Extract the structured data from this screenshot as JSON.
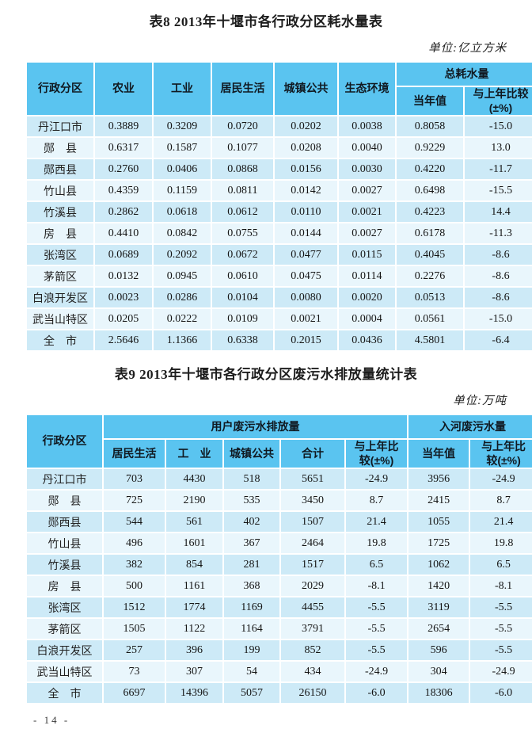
{
  "page": {
    "footer_page_number": "- 14 -"
  },
  "colors": {
    "header_bg": "#5ac4f0",
    "row_odd_bg": "#cdeaf7",
    "row_even_bg": "#e9f6fc"
  },
  "table8": {
    "title": "表8  2013年十堰市各行政分区耗水量表",
    "unit": "单位:亿立方米",
    "columns": {
      "district": "行政分区",
      "agriculture": "农业",
      "industry": "工业",
      "domestic": "居民生活",
      "urban_public": "城镇公共",
      "ecology": "生态环境",
      "total_group": "总耗水量",
      "current_value": "当年值",
      "yoy": "与上年比较\n(±%)"
    },
    "rows": [
      [
        "丹江口市",
        "0.3889",
        "0.3209",
        "0.0720",
        "0.0202",
        "0.0038",
        "0.8058",
        "-15.0"
      ],
      [
        "郧　县",
        "0.6317",
        "0.1587",
        "0.1077",
        "0.0208",
        "0.0040",
        "0.9229",
        "13.0"
      ],
      [
        "郧西县",
        "0.2760",
        "0.0406",
        "0.0868",
        "0.0156",
        "0.0030",
        "0.4220",
        "-11.7"
      ],
      [
        "竹山县",
        "0.4359",
        "0.1159",
        "0.0811",
        "0.0142",
        "0.0027",
        "0.6498",
        "-15.5"
      ],
      [
        "竹溪县",
        "0.2862",
        "0.0618",
        "0.0612",
        "0.0110",
        "0.0021",
        "0.4223",
        "14.4"
      ],
      [
        "房　县",
        "0.4410",
        "0.0842",
        "0.0755",
        "0.0144",
        "0.0027",
        "0.6178",
        "-11.3"
      ],
      [
        "张湾区",
        "0.0689",
        "0.2092",
        "0.0672",
        "0.0477",
        "0.0115",
        "0.4045",
        "-8.6"
      ],
      [
        "茅箭区",
        "0.0132",
        "0.0945",
        "0.0610",
        "0.0475",
        "0.0114",
        "0.2276",
        "-8.6"
      ],
      [
        "白浪开发区",
        "0.0023",
        "0.0286",
        "0.0104",
        "0.0080",
        "0.0020",
        "0.0513",
        "-8.6"
      ],
      [
        "武当山特区",
        "0.0205",
        "0.0222",
        "0.0109",
        "0.0021",
        "0.0004",
        "0.0561",
        "-15.0"
      ],
      [
        "全　市",
        "2.5646",
        "1.1366",
        "0.6338",
        "0.2015",
        "0.0436",
        "4.5801",
        "-6.4"
      ]
    ]
  },
  "table9": {
    "title": "表9  2013年十堰市各行政分区废污水排放量统计表",
    "unit": "单位:万吨",
    "columns": {
      "district": "行政分区",
      "user_group": "用户废污水排放量",
      "river_group": "入河废污水量",
      "domestic": "居民生活",
      "industry": "工　业",
      "urban_public": "城镇公共",
      "total": "合计",
      "user_yoy": "与上年比\n较(±%)",
      "current_value": "当年值",
      "river_yoy": "与上年比\n较(±%)"
    },
    "rows": [
      [
        "丹江口市",
        "703",
        "4430",
        "518",
        "5651",
        "-24.9",
        "3956",
        "-24.9"
      ],
      [
        "郧　县",
        "725",
        "2190",
        "535",
        "3450",
        "8.7",
        "2415",
        "8.7"
      ],
      [
        "郧西县",
        "544",
        "561",
        "402",
        "1507",
        "21.4",
        "1055",
        "21.4"
      ],
      [
        "竹山县",
        "496",
        "1601",
        "367",
        "2464",
        "19.8",
        "1725",
        "19.8"
      ],
      [
        "竹溪县",
        "382",
        "854",
        "281",
        "1517",
        "6.5",
        "1062",
        "6.5"
      ],
      [
        "房　县",
        "500",
        "1161",
        "368",
        "2029",
        "-8.1",
        "1420",
        "-8.1"
      ],
      [
        "张湾区",
        "1512",
        "1774",
        "1169",
        "4455",
        "-5.5",
        "3119",
        "-5.5"
      ],
      [
        "茅箭区",
        "1505",
        "1122",
        "1164",
        "3791",
        "-5.5",
        "2654",
        "-5.5"
      ],
      [
        "白浪开发区",
        "257",
        "396",
        "199",
        "852",
        "-5.5",
        "596",
        "-5.5"
      ],
      [
        "武当山特区",
        "73",
        "307",
        "54",
        "434",
        "-24.9",
        "304",
        "-24.9"
      ],
      [
        "全　市",
        "6697",
        "14396",
        "5057",
        "26150",
        "-6.0",
        "18306",
        "-6.0"
      ]
    ]
  }
}
